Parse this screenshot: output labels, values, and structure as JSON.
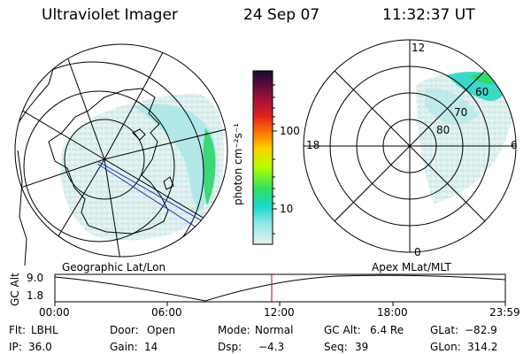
{
  "header": {
    "instrument": "Ultraviolet Imager",
    "date": "24 Sep 07",
    "time": "11:32:37 UT"
  },
  "left_panel": {
    "label": "Geographic Lat/Lon"
  },
  "right_panel": {
    "label": "Apex MLat/MLT",
    "mlt_labels": {
      "top": "12",
      "left": "18",
      "right": "6",
      "bottom": "0"
    },
    "lat_labels": [
      "80",
      "70",
      "60"
    ]
  },
  "colorbar": {
    "unit_label": "photon cm⁻²s⁻¹",
    "tick_labels": [
      "100",
      "10"
    ],
    "scale": "log",
    "colors": [
      "#1a0a2e",
      "#5a0b3a",
      "#a0103a",
      "#e02020",
      "#ff7a00",
      "#ffd000",
      "#b6ff00",
      "#30e060",
      "#19d8c8",
      "#8fe8e8",
      "#e8f0f0"
    ]
  },
  "altitude_plot": {
    "ylabel": "GC Alt",
    "y_ticks": [
      "9.0",
      "1.8"
    ],
    "x_ticks": [
      "00:00",
      "06:00",
      "12:00",
      "18:00",
      "23:59"
    ],
    "current_time_marker_color": "#cc0000",
    "current_time_fraction": 0.481
  },
  "status": {
    "row1": [
      {
        "key": "Flt:",
        "value": "LBHL"
      },
      {
        "key": "Door:",
        "value": "Open"
      },
      {
        "key": "Mode:",
        "value": "Normal"
      },
      {
        "key": "GC Alt:",
        "value": "6.4 Re"
      },
      {
        "key": "GLat:",
        "value": "−82.9"
      }
    ],
    "row2": [
      {
        "key": "IP:",
        "value": "36.0"
      },
      {
        "key": "Gain:",
        "value": "14"
      },
      {
        "key": "Dsp:",
        "value": "−4.3"
      },
      {
        "key": "Seq:",
        "value": "39"
      },
      {
        "key": "GLon:",
        "value": "314.2"
      }
    ]
  }
}
